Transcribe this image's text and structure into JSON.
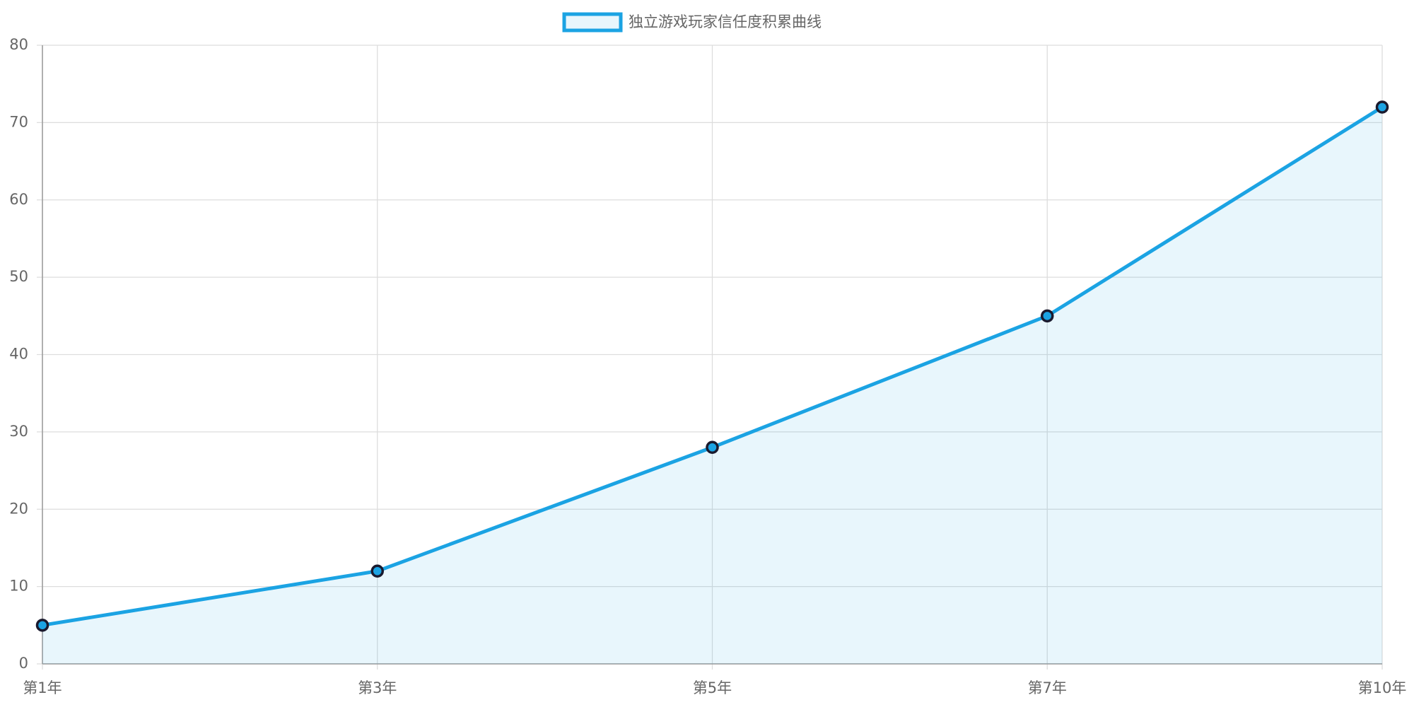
{
  "chart_data": {
    "type": "line",
    "categories": [
      "第1年",
      "第3年",
      "第5年",
      "第7年",
      "第10年"
    ],
    "series": [
      {
        "name": "独立游戏玩家信任度积累曲线",
        "color": "#1ba3e3",
        "values": [
          5,
          12,
          28,
          45,
          72
        ]
      }
    ],
    "fill": true,
    "point_border_color": "#1a1a2e",
    "ylim": [
      0,
      80
    ],
    "yticks": [
      0,
      10,
      20,
      30,
      40,
      50,
      60,
      70,
      80
    ],
    "grid": true,
    "legend": "top"
  }
}
